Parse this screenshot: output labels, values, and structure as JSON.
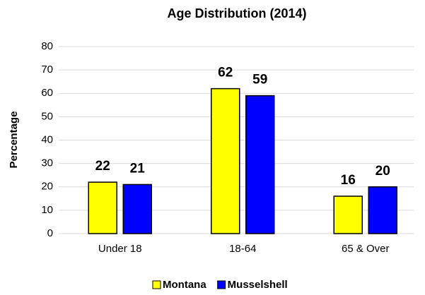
{
  "chart_data": {
    "type": "bar",
    "title": "Age Distribution (2014)",
    "y_label": "Percentage",
    "categories": [
      "Under 18",
      "18-64",
      "65 & Over"
    ],
    "series": [
      {
        "name": "Montana",
        "color": "#ffff00",
        "values": [
          22,
          62,
          16
        ]
      },
      {
        "name": "Musselshell",
        "color": "#0000ff",
        "values": [
          21,
          59,
          20
        ]
      }
    ],
    "ylim": [
      0,
      80
    ],
    "yticks": [
      0,
      10,
      20,
      30,
      40,
      50,
      60,
      70,
      80
    ],
    "grid": true,
    "legend": "bottom"
  }
}
